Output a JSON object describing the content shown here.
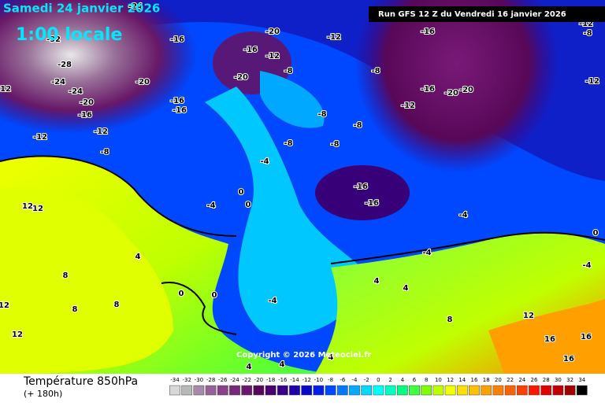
{
  "header": {
    "date": "Samedi 24 janvier 2026",
    "time": "1:00 locale",
    "run": "Run GFS 12 Z du Vendredi 16 janvier 2026"
  },
  "map": {
    "copyright": "Copyright © 2026 Meteociel.fr",
    "labels": [
      -24,
      -32,
      -28,
      -24,
      -24,
      -20,
      -16,
      -12,
      -20,
      -16,
      -20,
      -12,
      -16,
      -12,
      -20,
      -8,
      -8,
      -16,
      -16,
      -12,
      -12,
      -8,
      -12,
      -16,
      -20,
      -20,
      -16,
      -12,
      -8,
      -12,
      -8,
      -8,
      -8,
      -8,
      -4,
      -16,
      -16,
      -4,
      0,
      0,
      -4,
      -4,
      4,
      8,
      8,
      8,
      12,
      12,
      0,
      0,
      -4,
      4,
      4,
      8,
      12,
      16,
      16,
      16,
      12,
      12,
      -4,
      0,
      4,
      4,
      4
    ]
  },
  "footer": {
    "title": "Température 850hPa",
    "lead": "(+ 180h)"
  },
  "colorbar": {
    "ticks": [
      -34,
      -32,
      -30,
      -28,
      -26,
      -24,
      -22,
      -20,
      -18,
      -16,
      -14,
      -12,
      -10,
      -8,
      -6,
      -4,
      -2,
      0,
      2,
      4,
      6,
      8,
      10,
      12,
      14,
      16,
      18,
      20,
      22,
      24,
      26,
      28,
      30,
      32,
      34
    ],
    "colors": [
      "#d8d8d8",
      "#b8b8b8",
      "#a888a8",
      "#986098",
      "#884088",
      "#782878",
      "#681868",
      "#580858",
      "#480068",
      "#380088",
      "#2000a8",
      "#0808c8",
      "#0020e8",
      "#0048ff",
      "#0078ff",
      "#00a8ff",
      "#00d8ff",
      "#00ffff",
      "#00ffc0",
      "#00ff80",
      "#40ff40",
      "#80ff00",
      "#c0ff00",
      "#f0ff00",
      "#ffe000",
      "#ffc000",
      "#ffa000",
      "#ff8000",
      "#ff6000",
      "#ff4000",
      "#ff1800",
      "#e00000",
      "#c00000",
      "#a00000",
      "#000000"
    ]
  }
}
